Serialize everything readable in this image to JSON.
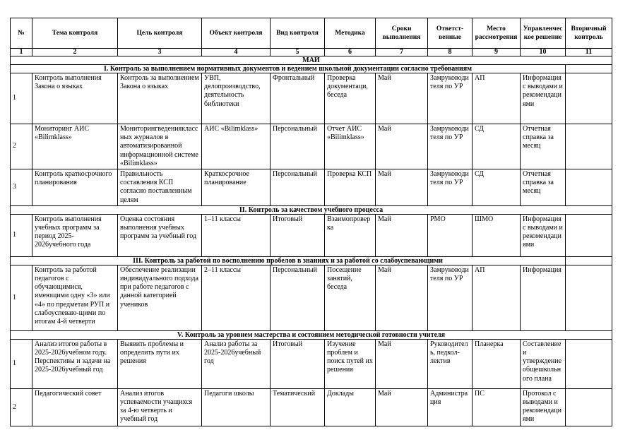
{
  "headers": [
    "№",
    "Тема контроля",
    "Цель контроля",
    "Объект контроля",
    "Вид контроля",
    "Методика",
    "Сроки выполнения",
    "Ответст-венные",
    "Место рассмотрения",
    "Управленческое решение",
    "Вторичный контроль"
  ],
  "column_numbers": [
    "1",
    "2",
    "3",
    "4",
    "5",
    "6",
    "7",
    "8",
    "9",
    "10",
    "11"
  ],
  "month": "МАЙ",
  "sections": [
    {
      "title": "I. Контроль за выполнением нормативных документов и ведением школьной документации согласно требованиям",
      "separate_last_cell": true,
      "rows": [
        [
          "1",
          "Контроль выполнения Закона о языках",
          "Контроль за выполнением Закона о языках",
          "УВП, делопроизводство, деятельность библиотеки",
          "Фронтальный",
          "Проверка документаци, беседа",
          "Май",
          "Замруководителя по УР",
          "АП",
          "Информация с выводами и рекомендациями",
          ""
        ],
        [
          "2",
          "Мониторинг АИС «Bilimklass»",
          "Мониторингведенияклассных журналов в автоматизированной информационной системе «Bilimklass»",
          "АИС «Bilimklass»",
          "Персональный",
          "Отчет АИС «Bilimklass»",
          "Май",
          "Замруководителя по УР",
          "СД",
          "Отчетная справка за месяц",
          ""
        ],
        [
          "3",
          "Контроль краткосрочного планирования",
          "Правильность составления КСП согласно поставленным целям",
          "Краткосрочное планирование",
          "Персональный",
          "Проверка КСП",
          "Май",
          "Замруководителя по УР",
          "СД",
          "Отчетная справка за месяц",
          ""
        ]
      ]
    },
    {
      "title": "II. Контроль за качеством учебного процесса",
      "separate_last_cell": false,
      "rows": [
        [
          "1",
          "Контроль выполнения учебных программ за период 2025-2026учебного года",
          "Оценка состояния выполнения учебных программ за учебный год",
          "1–11 классы",
          "Итоговый",
          "Взаимопроверка",
          "Май",
          "РМО",
          "ШМО",
          "Информация с выводами и рекомендациями",
          ""
        ]
      ]
    },
    {
      "title": "III. Контроль за работой по восполнению пробелов в знаниях и за работой со слабоуспевающими",
      "separate_last_cell": true,
      "rows": [
        [
          "1",
          "Контроль за работой педагогов с обучающимися, имеющими одну «3» или «4» по предметам РУП и слабоуспеваю-щими по итогам 4-й четверти",
          "Обеспечение реализации индивидуального подхода при работе педагогов с данной категорией учеников",
          "2–11 классы",
          "Персональный",
          "Посещение занятий, беседа",
          "Май",
          "Замруководителя по УР",
          "АП",
          "Информация",
          ""
        ]
      ]
    },
    {
      "title": "V. Контроль за уровнем мастерства и состоянием методической готовности учителя",
      "separate_last_cell": false,
      "rows": [
        [
          "1",
          "Анализ итогов работы в 2025-2026учебном году. Перспективы и задачи на 2025-2026учебный год",
          "Выявить проблемы и определить пути их решения",
          "Анализ работы за 2025-2026учебный год",
          "Итоговый",
          "Изучение проблем и поиск путей их решения",
          "Май",
          "Руководитель, педкол-лектив",
          "Планерка",
          "Составление и утверждение общешкольного плана",
          ""
        ],
        [
          "2",
          "Педагогический совет",
          "Анализ итогов успеваемости учащихся за 4-ю четверть и учебный год",
          "Педагоги школы",
          "Тематический",
          "Доклады",
          "Май",
          "Администрация",
          "ПС",
          "Протокол с выводами и рекомендациями",
          ""
        ]
      ]
    }
  ]
}
